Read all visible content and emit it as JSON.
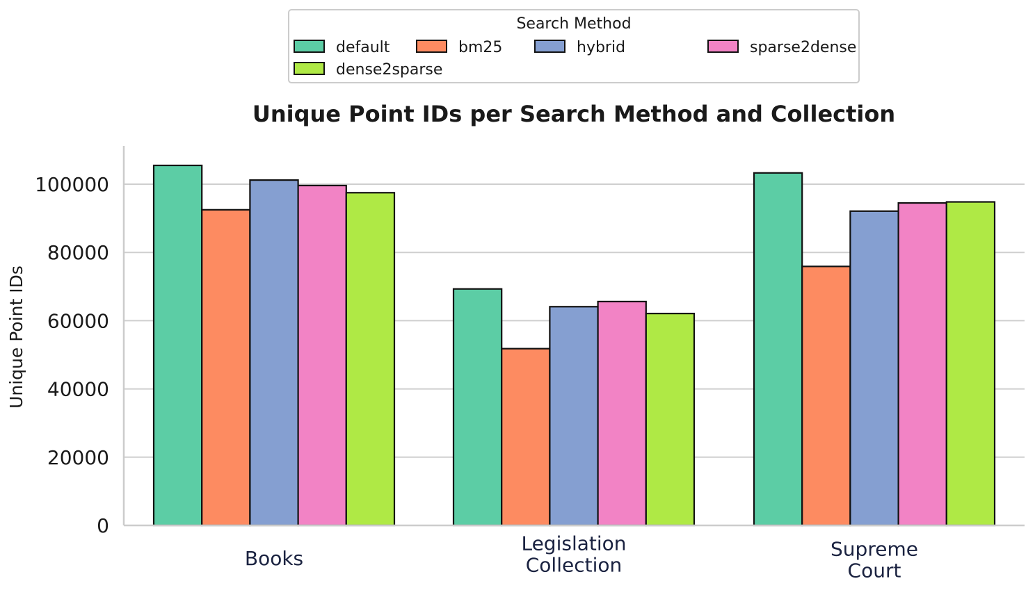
{
  "chart_data": {
    "type": "bar",
    "title": "Unique Point IDs per Search Method and Collection",
    "xlabel": "",
    "ylabel": "Unique Point IDs",
    "categories": [
      [
        "Books"
      ],
      [
        "Legislation",
        "Collection"
      ],
      [
        "Supreme",
        "Court"
      ]
    ],
    "series": [
      {
        "name": "default",
        "color": "#5ccda5",
        "values": [
          105500,
          69300,
          103300
        ]
      },
      {
        "name": "bm25",
        "color": "#fd8b61",
        "values": [
          92500,
          51800,
          75900
        ]
      },
      {
        "name": "hybrid",
        "color": "#859fd1",
        "values": [
          101200,
          64100,
          92100
        ]
      },
      {
        "name": "sparse2dense",
        "color": "#f283c5",
        "values": [
          99600,
          65600,
          94500
        ]
      },
      {
        "name": "dense2sparse",
        "color": "#afe945",
        "values": [
          97500,
          62100,
          94800
        ]
      }
    ],
    "ylim": [
      0,
      111000
    ],
    "yticks": [
      0,
      20000,
      40000,
      60000,
      80000,
      100000
    ],
    "grid": true,
    "legend": {
      "title": "Search Method",
      "placement": "top-center"
    }
  }
}
